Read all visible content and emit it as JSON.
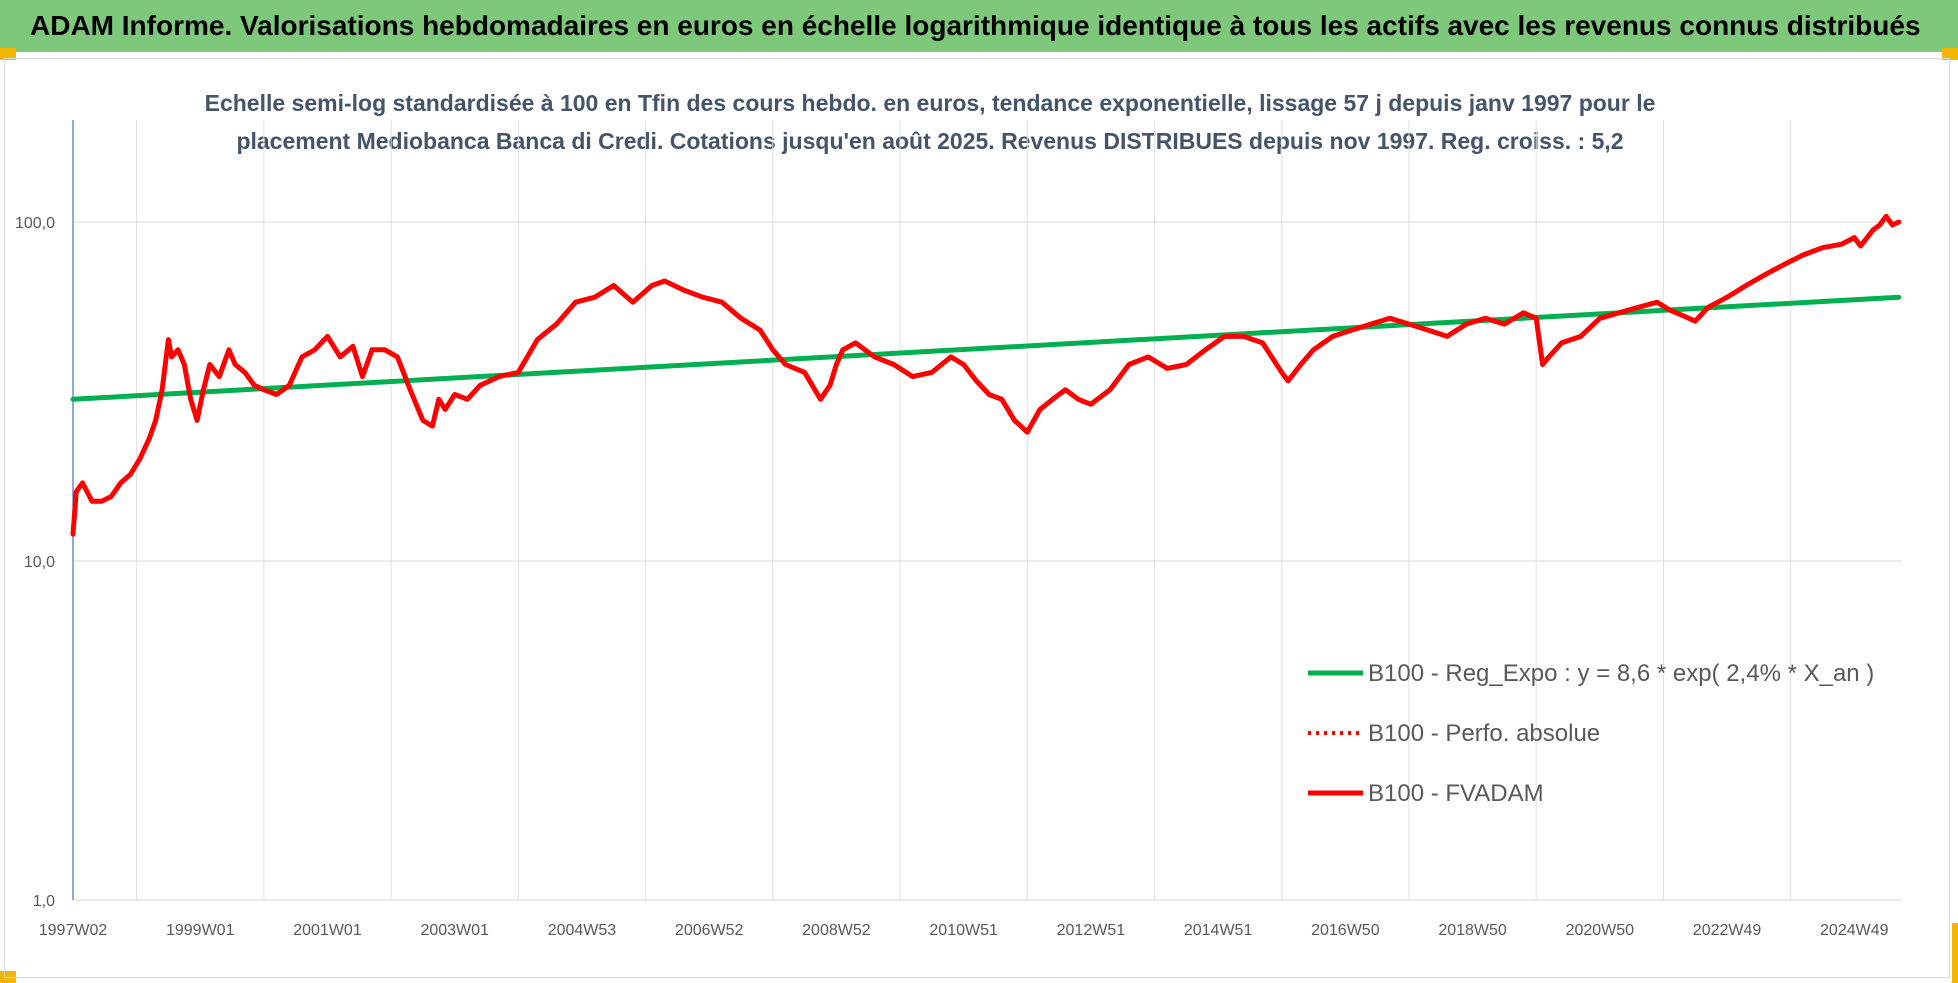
{
  "header": {
    "title": "ADAM Informe. Valorisations hebdomadaires en euros en échelle logarithmique identique à tous les actifs avec les revenus connus distribués"
  },
  "chart_data": {
    "type": "line",
    "subtitle_lines": [
      "Echelle semi-log standardisée à 100 en Tfin des cours hebdo. en euros, tendance exponentielle, lissage 57 j depuis janv 1997 pour le",
      "placement Mediobanca Banca di Credi. Cotations jusqu'en août 2025. Revenus DISTRIBUES depuis nov 1997. Reg. croiss. : 5,2"
    ],
    "y_scale": "log",
    "ylim": [
      1,
      200
    ],
    "y_ticks": [
      {
        "value": 1,
        "label": "1,0"
      },
      {
        "value": 10,
        "label": "10,0"
      },
      {
        "value": 100,
        "label": "100,0"
      }
    ],
    "xlim": [
      1997.0,
      2025.75
    ],
    "x_ticks": [
      {
        "value": 1997.0,
        "label": "1997W02"
      },
      {
        "value": 1999.0,
        "label": "1999W01"
      },
      {
        "value": 2001.0,
        "label": "2001W01"
      },
      {
        "value": 2003.0,
        "label": "2003W01"
      },
      {
        "value": 2005.0,
        "label": "2004W53"
      },
      {
        "value": 2007.0,
        "label": "2006W52"
      },
      {
        "value": 2009.0,
        "label": "2008W52"
      },
      {
        "value": 2011.0,
        "label": "2010W51"
      },
      {
        "value": 2013.0,
        "label": "2012W51"
      },
      {
        "value": 2015.0,
        "label": "2014W51"
      },
      {
        "value": 2017.0,
        "label": "2016W50"
      },
      {
        "value": 2019.0,
        "label": "2018W50"
      },
      {
        "value": 2021.0,
        "label": "2020W50"
      },
      {
        "value": 2023.0,
        "label": "2022W49"
      },
      {
        "value": 2025.0,
        "label": "2024W49"
      }
    ],
    "grid": true,
    "legend_position": "bottom-right",
    "series": [
      {
        "name": "B100 - Reg_Expo : y = 8,6 * exp( 2,4% *  X_an )",
        "color": "#00b050",
        "style": "solid",
        "x": [
          1997.0,
          2025.7
        ],
        "y": [
          30.0,
          60.0
        ]
      },
      {
        "name": "B100 - Perfo. absolue",
        "color": "#ff0000",
        "style": "dotted",
        "x": [],
        "y": []
      },
      {
        "name": "B100 - FVADAM",
        "color": "#ff0000",
        "style": "solid",
        "x": [
          1997.0,
          1997.05,
          1997.15,
          1997.3,
          1997.45,
          1997.6,
          1997.75,
          1997.9,
          1998.05,
          1998.2,
          1998.3,
          1998.4,
          1998.5,
          1998.55,
          1998.65,
          1998.75,
          1998.85,
          1998.95,
          1999.05,
          1999.15,
          1999.3,
          1999.45,
          1999.55,
          1999.7,
          1999.85,
          2000.0,
          2000.2,
          2000.4,
          2000.6,
          2000.8,
          2001.0,
          2001.2,
          2001.4,
          2001.55,
          2001.7,
          2001.9,
          2002.1,
          2002.3,
          2002.5,
          2002.65,
          2002.75,
          2002.85,
          2003.0,
          2003.2,
          2003.4,
          2003.7,
          2004.0,
          2004.3,
          2004.6,
          2004.9,
          2005.2,
          2005.5,
          2005.8,
          2006.1,
          2006.3,
          2006.6,
          2006.9,
          2007.2,
          2007.5,
          2007.8,
          2008.0,
          2008.2,
          2008.5,
          2008.75,
          2008.9,
          2009.0,
          2009.1,
          2009.3,
          2009.6,
          2009.9,
          2010.2,
          2010.5,
          2010.8,
          2011.0,
          2011.2,
          2011.4,
          2011.6,
          2011.8,
          2012.0,
          2012.2,
          2012.4,
          2012.6,
          2012.8,
          2013.0,
          2013.3,
          2013.6,
          2013.9,
          2014.2,
          2014.5,
          2014.8,
          2015.1,
          2015.4,
          2015.7,
          2016.0,
          2016.1,
          2016.3,
          2016.5,
          2016.8,
          2017.1,
          2017.4,
          2017.7,
          2018.0,
          2018.3,
          2018.6,
          2018.9,
          2019.2,
          2019.5,
          2019.8,
          2020.0,
          2020.1,
          2020.2,
          2020.4,
          2020.7,
          2021.0,
          2021.3,
          2021.6,
          2021.9,
          2022.1,
          2022.3,
          2022.5,
          2022.7,
          2023.0,
          2023.3,
          2023.6,
          2023.9,
          2024.2,
          2024.5,
          2024.8,
          2025.0,
          2025.1,
          2025.3,
          2025.4,
          2025.5,
          2025.6,
          2025.7
        ],
        "y": [
          12.0,
          16.0,
          17.0,
          15.0,
          15.0,
          15.5,
          17.0,
          18.0,
          20.0,
          23.0,
          26.0,
          32.0,
          45.0,
          40.0,
          42.0,
          38.0,
          30.0,
          26.0,
          32.0,
          38.0,
          35.0,
          42.0,
          38.0,
          36.0,
          33.0,
          32.0,
          31.0,
          33.0,
          40.0,
          42.0,
          46.0,
          40.0,
          43.0,
          35.0,
          42.0,
          42.0,
          40.0,
          32.0,
          26.0,
          25.0,
          30.0,
          28.0,
          31.0,
          30.0,
          33.0,
          35.0,
          36.0,
          45.0,
          50.0,
          58.0,
          60.0,
          65.0,
          58.0,
          65.0,
          67.0,
          63.0,
          60.0,
          58.0,
          52.0,
          48.0,
          42.0,
          38.0,
          36.0,
          30.0,
          33.0,
          38.0,
          42.0,
          44.0,
          40.0,
          38.0,
          35.0,
          36.0,
          40.0,
          38.0,
          34.0,
          31.0,
          30.0,
          26.0,
          24.0,
          28.0,
          30.0,
          32.0,
          30.0,
          29.0,
          32.0,
          38.0,
          40.0,
          37.0,
          38.0,
          42.0,
          46.0,
          46.0,
          44.0,
          36.0,
          34.0,
          38.0,
          42.0,
          46.0,
          48.0,
          50.0,
          52.0,
          50.0,
          48.0,
          46.0,
          50.0,
          52.0,
          50.0,
          54.0,
          52.0,
          38.0,
          40.0,
          44.0,
          46.0,
          52.0,
          54.0,
          56.0,
          58.0,
          55.0,
          53.0,
          51.0,
          56.0,
          60.0,
          65.0,
          70.0,
          75.0,
          80.0,
          84.0,
          86.0,
          90.0,
          85.0,
          95.0,
          98.0,
          104.0,
          98.0,
          100.0
        ]
      }
    ]
  }
}
